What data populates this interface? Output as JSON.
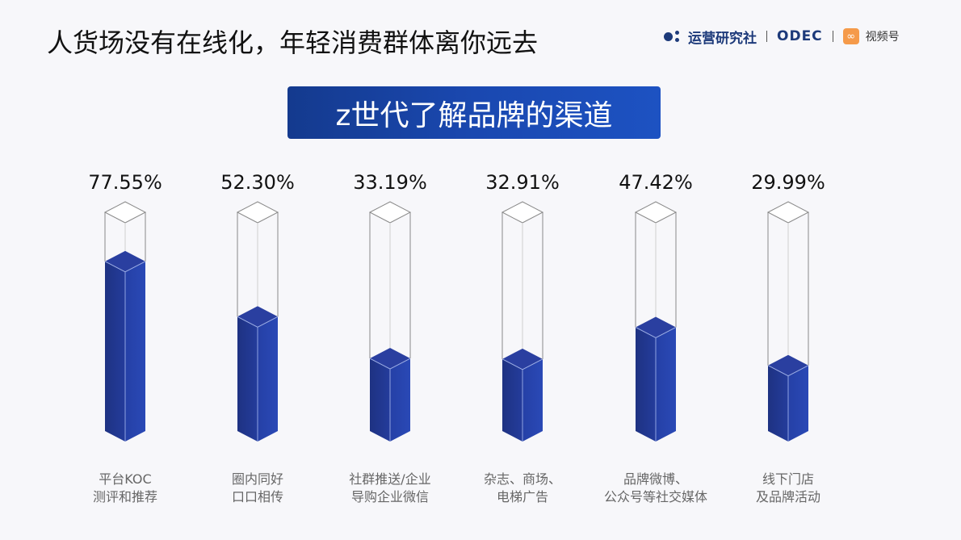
{
  "header": {
    "title": "人货场没有在线化，年轻消费群体离你远去",
    "brand": {
      "logo_text": "运营研究社",
      "partner": "ODEC",
      "channel_icon": "∞",
      "channel": "视频号"
    }
  },
  "banner": {
    "text": "z世代了解品牌的渠道"
  },
  "colors": {
    "fill_left": "#1f3487",
    "fill_right": "#2744b0",
    "fill_top": "#2a3fa0",
    "outline": "#8a8a8a",
    "banner": "#1a48b0"
  },
  "chart_data": {
    "type": "bar",
    "title": "z世代了解品牌的渠道",
    "xlabel": "",
    "ylabel": "",
    "ylim": [
      0,
      100
    ],
    "grid": false,
    "legend": null,
    "categories": [
      "平台KOC测评和推荐",
      "圈内同好口口相传",
      "社群推送/企业导购企业微信",
      "杂志、商场、电梯广告",
      "品牌微博、公众号等社交媒体",
      "线下门店及品牌活动"
    ],
    "values": [
      77.55,
      52.3,
      33.19,
      32.91,
      47.42,
      29.99
    ],
    "labels": [
      "77.55%",
      "52.30%",
      "33.19%",
      "32.91%",
      "47.42%",
      "29.99%"
    ],
    "category_lines": [
      [
        "平台KOC",
        "测评和推荐"
      ],
      [
        "圈内同好",
        "口口相传"
      ],
      [
        "社群推送/企业",
        "导购企业微信"
      ],
      [
        "杂志、商场、",
        "电梯广告"
      ],
      [
        "品牌微博、",
        "公众号等社交媒体"
      ],
      [
        "线下门店",
        "及品牌活动"
      ]
    ]
  }
}
